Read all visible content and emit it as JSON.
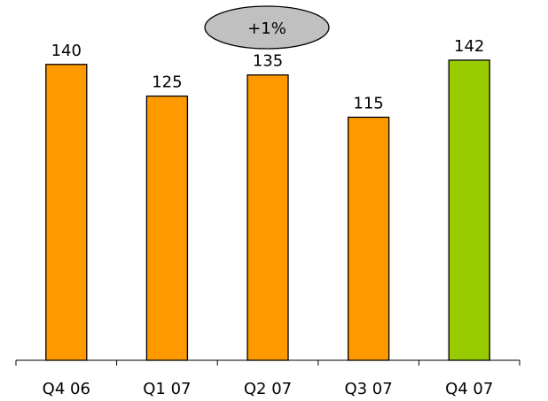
{
  "chart_data": {
    "type": "bar",
    "categories": [
      "Q4 06",
      "Q1 07",
      "Q2 07",
      "Q3 07",
      "Q4 07"
    ],
    "values": [
      140,
      125,
      135,
      115,
      142
    ],
    "data_labels": [
      "140",
      "125",
      "135",
      "115",
      "142"
    ],
    "bar_colors": [
      "#ff9900",
      "#ff9900",
      "#ff9900",
      "#ff9900",
      "#99cc00"
    ],
    "ylim": [
      0,
      160
    ],
    "grid": false,
    "annotation": "+1%",
    "annotation_color": "#c0c0c0"
  }
}
